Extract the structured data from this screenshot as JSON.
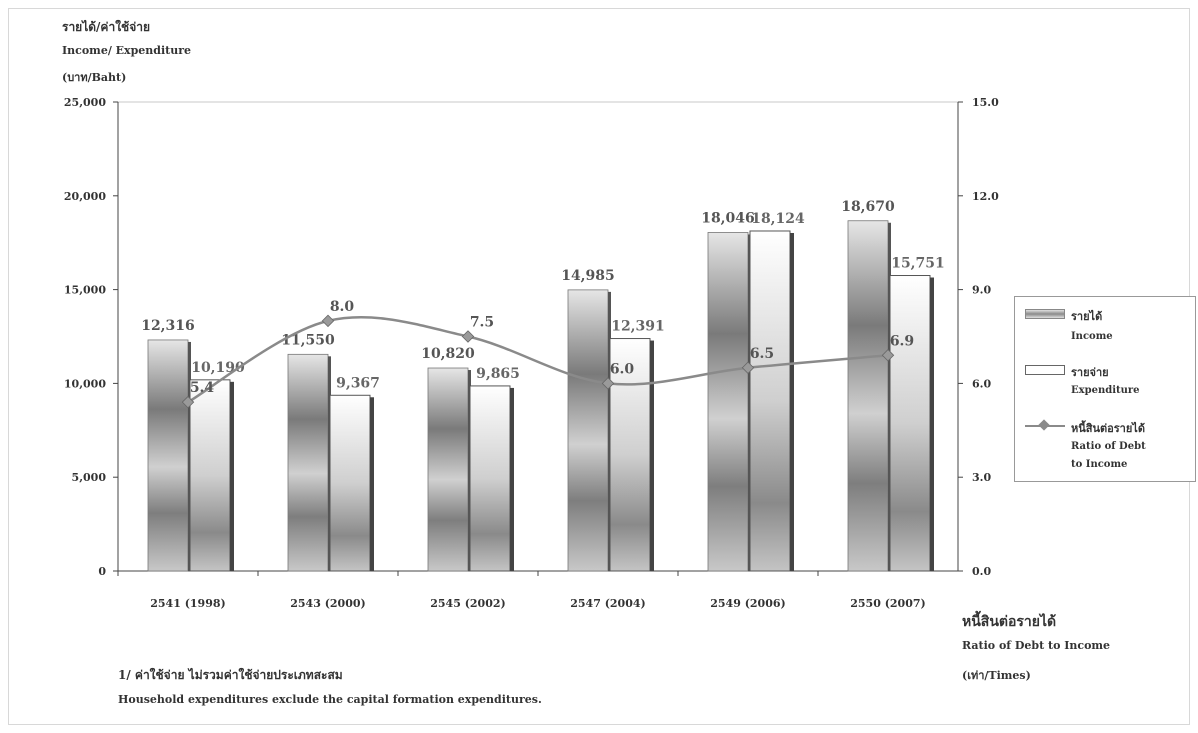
{
  "chart_data": {
    "type": "bar",
    "categories": [
      "2541 (1998)",
      "2543 (2000)",
      "2545 (2002)",
      "2547 (2004)",
      "2549 (2006)",
      "2550 (2007)"
    ],
    "series": [
      {
        "name": "รายได้ Income",
        "type": "bar",
        "axis": "left",
        "values": [
          12316,
          11550,
          10820,
          14985,
          18046,
          18670
        ],
        "labels": [
          "12,316",
          "11,550",
          "10,820",
          "14,985",
          "18,046",
          "18,670"
        ]
      },
      {
        "name": "รายจ่าย Expenditure",
        "type": "bar",
        "axis": "left",
        "values": [
          10190,
          9367,
          9865,
          12391,
          18124,
          15751
        ],
        "labels": [
          "10,190",
          "9,367",
          "9,865",
          "12,391",
          "18,124",
          "15,751"
        ]
      },
      {
        "name": "หนี้สินต่อรายได้ Ratio of Debt to Income",
        "type": "line",
        "axis": "right",
        "values": [
          5.4,
          8.0,
          7.5,
          6.0,
          6.5,
          6.9
        ],
        "labels": [
          "5.4",
          "8.0",
          "7.5",
          "6.0",
          "6.5",
          "6.9"
        ]
      }
    ],
    "y_left": {
      "label_th": "รายได้/ค่าใช้จ่าย",
      "label_en": "Income/ Expenditure",
      "unit": "(บาท/Baht)",
      "range": [
        0,
        25000
      ],
      "ticks": [
        "0",
        "5,000",
        "10,000",
        "15,000",
        "20,000",
        "25,000"
      ]
    },
    "y_right": {
      "label_th": "หนี้สินต่อรายได้",
      "label_en": "Ratio of Debt to Income",
      "unit": "(เท่า/Times)",
      "range": [
        0,
        15
      ],
      "ticks": [
        "0.0",
        "3.0",
        "6.0",
        "9.0",
        "12.0",
        "15.0"
      ]
    },
    "legend": {
      "position": "right",
      "items": [
        {
          "th": "รายได้",
          "en": "Income"
        },
        {
          "th": "รายจ่าย",
          "en": "Expenditure"
        },
        {
          "th": "หนี้สินต่อรายได้",
          "en": "Ratio of Debt",
          "en2": "to Income"
        }
      ]
    },
    "footnotes": [
      "1/ ค่าใช้จ่าย ไม่รวมค่าใช้จ่ายประเภทสะสม",
      "Household expenditures exclude the capital formation expenditures."
    ],
    "colors": {
      "income": "#8a8a8a",
      "expenditure": "#ffffff",
      "line": "#8a8a8a",
      "label": "#555555"
    },
    "grid": false
  }
}
